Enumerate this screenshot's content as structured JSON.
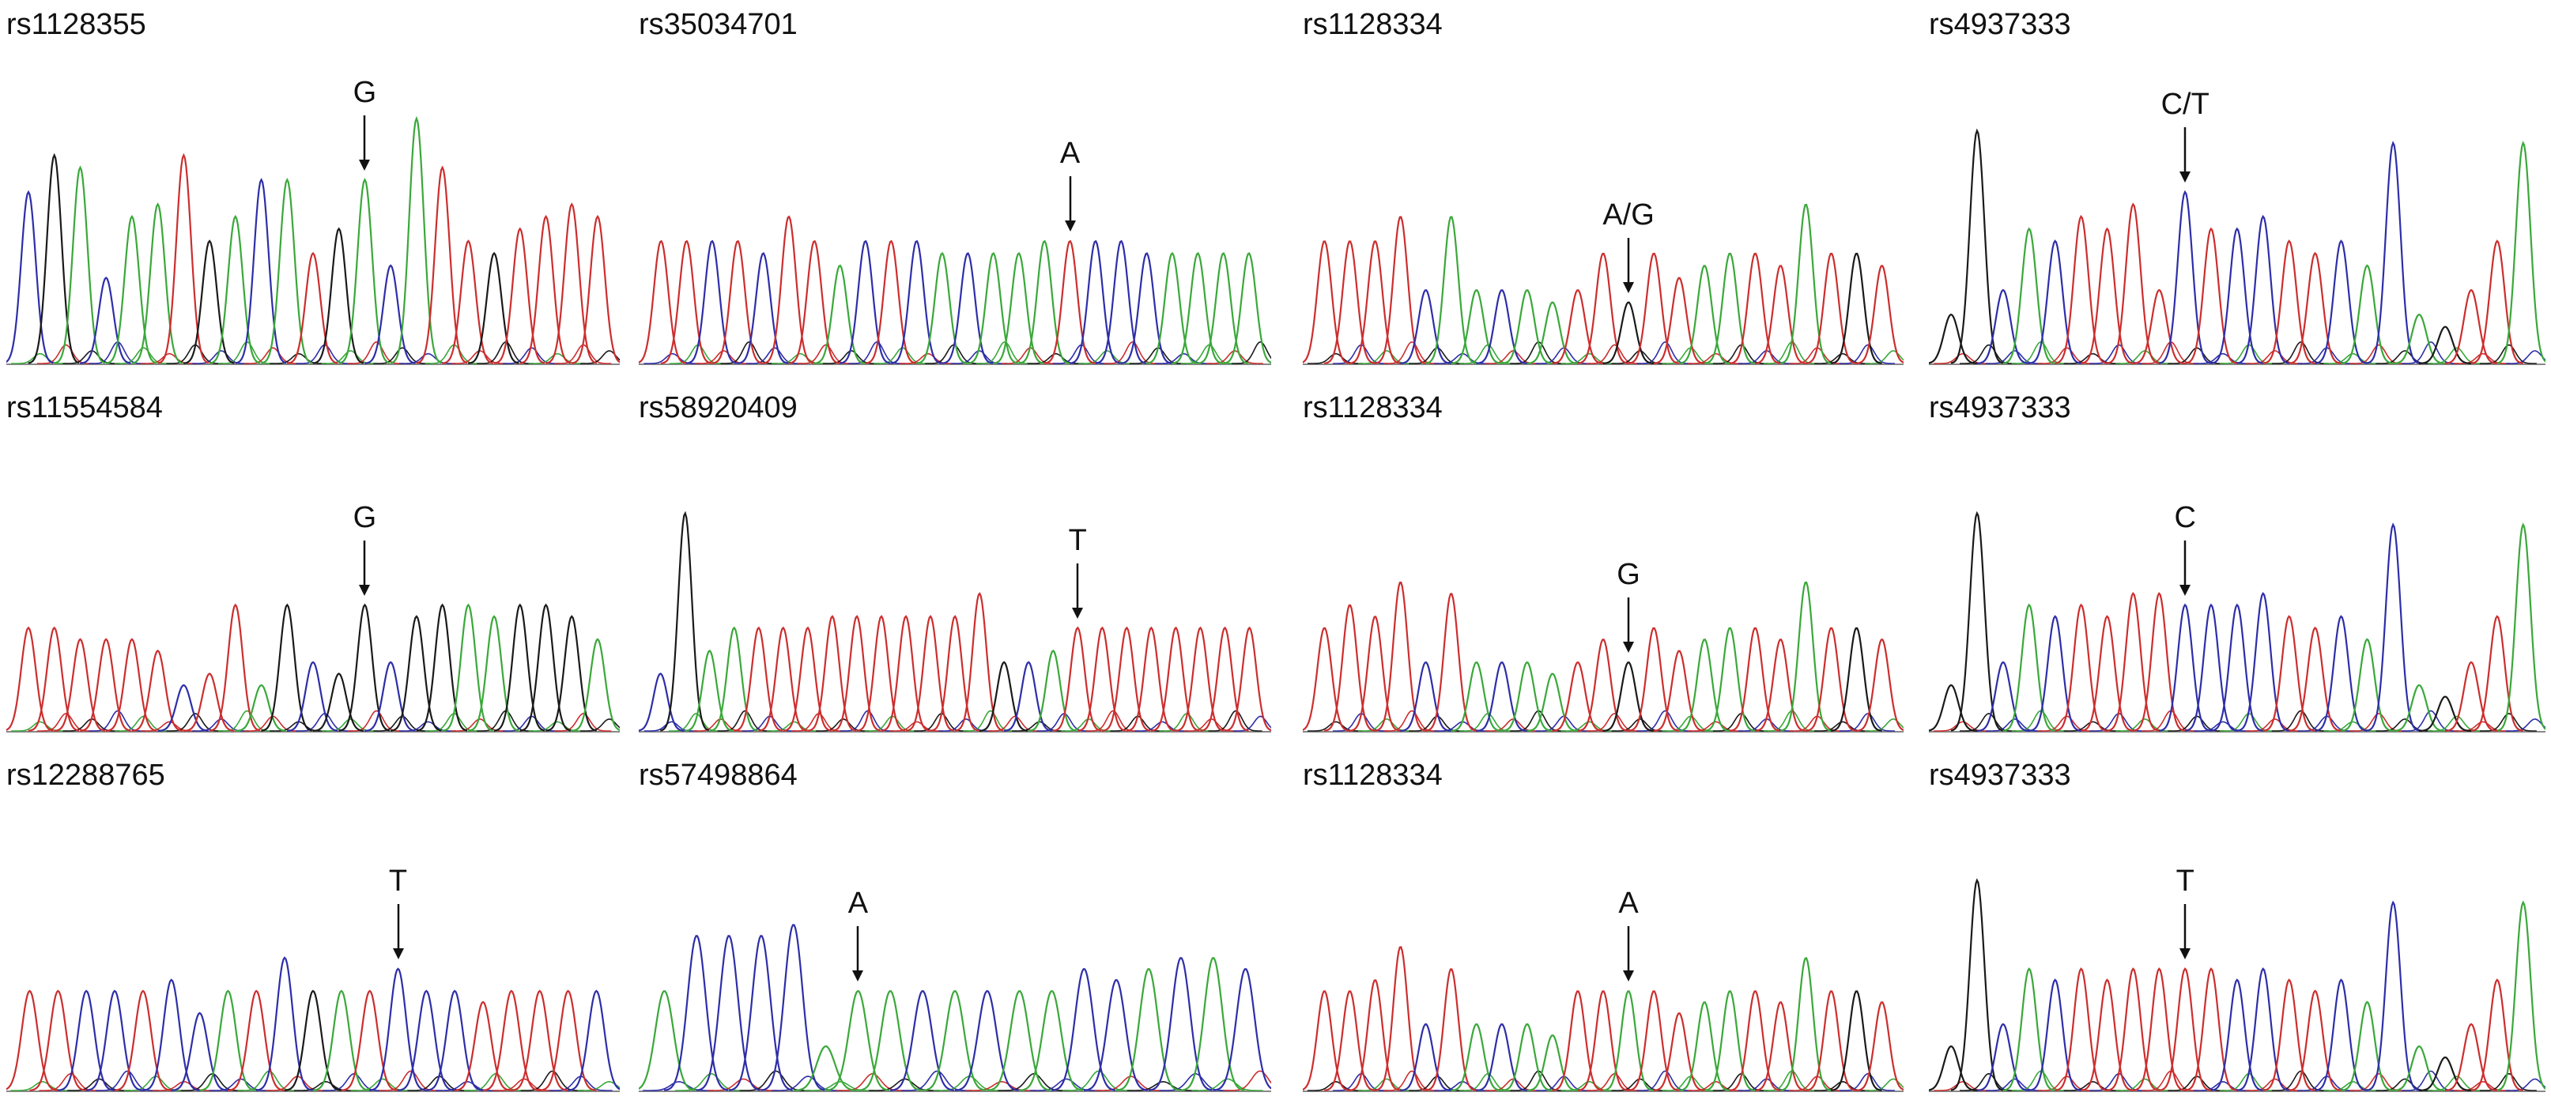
{
  "colors": {
    "A": "#3aa83a",
    "C": "#2e2ea8",
    "G": "#1a1a1a",
    "T": "#cc2e2e",
    "baseline": "#888888"
  },
  "panels": [
    {
      "id": "r0c0",
      "label": "rs1128355",
      "call": "G",
      "seq": "CGACAATGACATGACATTGTTTT",
      "peaks": [
        0.7,
        0.85,
        0.8,
        0.35,
        0.6,
        0.65,
        0.85,
        0.5,
        0.6,
        0.75,
        0.75,
        0.45,
        0.55,
        0.75,
        0.4,
        1.0,
        0.8,
        0.5,
        0.45,
        0.55,
        0.6,
        0.65,
        0.6
      ],
      "highlight": 13
    },
    {
      "id": "r0c1",
      "label": "rs35034701",
      "call": "A",
      "seq": "TTCTCTTACTCACAAATCCCAAAA",
      "peaks": [
        0.5,
        0.5,
        0.5,
        0.5,
        0.45,
        0.6,
        0.5,
        0.4,
        0.5,
        0.5,
        0.5,
        0.45,
        0.45,
        0.45,
        0.45,
        0.5,
        0.5,
        0.5,
        0.5,
        0.45,
        0.45,
        0.45,
        0.45,
        0.45
      ],
      "highlight": 16
    },
    {
      "id": "r0c2",
      "label": "rs1128334",
      "call": "A/G",
      "seq": "TTTTCAACAATTGTTAATTATGT",
      "peaks": [
        0.5,
        0.5,
        0.5,
        0.6,
        0.3,
        0.6,
        0.3,
        0.3,
        0.3,
        0.25,
        0.3,
        0.45,
        0.25,
        0.45,
        0.35,
        0.4,
        0.45,
        0.45,
        0.4,
        0.65,
        0.45,
        0.45,
        0.4
      ],
      "highlight": 12
    },
    {
      "id": "r0c3",
      "label": "rs4937333",
      "call": "C/T",
      "seq": "GGCACTTTTCTCCTTCACAGTTA",
      "peaks": [
        0.2,
        0.95,
        0.3,
        0.55,
        0.5,
        0.6,
        0.55,
        0.65,
        0.3,
        0.7,
        0.55,
        0.55,
        0.6,
        0.5,
        0.45,
        0.5,
        0.4,
        0.9,
        0.2,
        0.15,
        0.3,
        0.5,
        0.9
      ],
      "highlight": 9
    },
    {
      "id": "r1c0",
      "label": "rs11554584",
      "call": "G",
      "seq": "TTTTTTCTTAGCGGCGGAAGGGA",
      "peaks": [
        0.45,
        0.45,
        0.4,
        0.4,
        0.4,
        0.35,
        0.2,
        0.25,
        0.55,
        0.2,
        0.55,
        0.3,
        0.25,
        0.55,
        0.3,
        0.5,
        0.55,
        0.55,
        0.5,
        0.55,
        0.55,
        0.5,
        0.4
      ],
      "highlight": 13
    },
    {
      "id": "r1c1",
      "label": "rs58920409",
      "call": "T",
      "seq": "CGAATTTTTTTTTTGCATTTTTTTT",
      "peaks": [
        0.25,
        0.95,
        0.35,
        0.45,
        0.45,
        0.45,
        0.45,
        0.5,
        0.5,
        0.5,
        0.5,
        0.5,
        0.5,
        0.6,
        0.3,
        0.3,
        0.35,
        0.45,
        0.45,
        0.45,
        0.45,
        0.45,
        0.45,
        0.45,
        0.45
      ],
      "highlight": 17
    },
    {
      "id": "r1c2",
      "label": "rs1128334",
      "call": "G",
      "seq": "TTTTCTACAATTGTTAATTATGT",
      "peaks": [
        0.45,
        0.55,
        0.5,
        0.65,
        0.3,
        0.6,
        0.3,
        0.3,
        0.3,
        0.25,
        0.3,
        0.4,
        0.3,
        0.45,
        0.35,
        0.4,
        0.45,
        0.45,
        0.4,
        0.65,
        0.45,
        0.45,
        0.4
      ],
      "highlight": 12
    },
    {
      "id": "r1c3",
      "label": "rs4937333",
      "call": "C",
      "seq": "GGCACTTTTCCCCTTCACAGTTA",
      "peaks": [
        0.2,
        0.95,
        0.3,
        0.55,
        0.5,
        0.55,
        0.5,
        0.6,
        0.6,
        0.55,
        0.55,
        0.55,
        0.6,
        0.5,
        0.45,
        0.5,
        0.4,
        0.9,
        0.2,
        0.15,
        0.3,
        0.5,
        0.9
      ],
      "highlight": 9
    },
    {
      "id": "r2c0",
      "label": "rs12288765",
      "call": "T",
      "seq": "TTCCTCCATCGATCCCTTTTC",
      "peaks": [
        0.45,
        0.45,
        0.45,
        0.45,
        0.45,
        0.5,
        0.35,
        0.45,
        0.45,
        0.6,
        0.45,
        0.45,
        0.45,
        0.55,
        0.45,
        0.45,
        0.4,
        0.45,
        0.45,
        0.45,
        0.45
      ],
      "highlight": 13
    },
    {
      "id": "r2c1",
      "label": "rs57498864",
      "call": "A",
      "seq": "ACCCCAAACACAACCACAC",
      "peaks": [
        0.45,
        0.7,
        0.7,
        0.7,
        0.75,
        0.2,
        0.45,
        0.45,
        0.45,
        0.45,
        0.45,
        0.45,
        0.45,
        0.55,
        0.5,
        0.55,
        0.6,
        0.6,
        0.55
      ],
      "highlight": 6
    },
    {
      "id": "r2c2",
      "label": "rs1128334",
      "call": "A",
      "seq": "TTTTCTACAATTATTAATTATGT",
      "peaks": [
        0.45,
        0.45,
        0.5,
        0.65,
        0.3,
        0.55,
        0.3,
        0.3,
        0.3,
        0.25,
        0.45,
        0.45,
        0.45,
        0.45,
        0.35,
        0.4,
        0.45,
        0.45,
        0.4,
        0.6,
        0.45,
        0.45,
        0.4
      ],
      "highlight": 12
    },
    {
      "id": "r2c3",
      "label": "rs4937333",
      "call": "T",
      "seq": "GGCACTTTTTTCCTTCACAGTTA",
      "peaks": [
        0.2,
        0.95,
        0.3,
        0.55,
        0.5,
        0.55,
        0.5,
        0.55,
        0.55,
        0.55,
        0.55,
        0.5,
        0.55,
        0.5,
        0.45,
        0.5,
        0.4,
        0.85,
        0.2,
        0.15,
        0.3,
        0.5,
        0.85
      ],
      "highlight": 9
    }
  ]
}
